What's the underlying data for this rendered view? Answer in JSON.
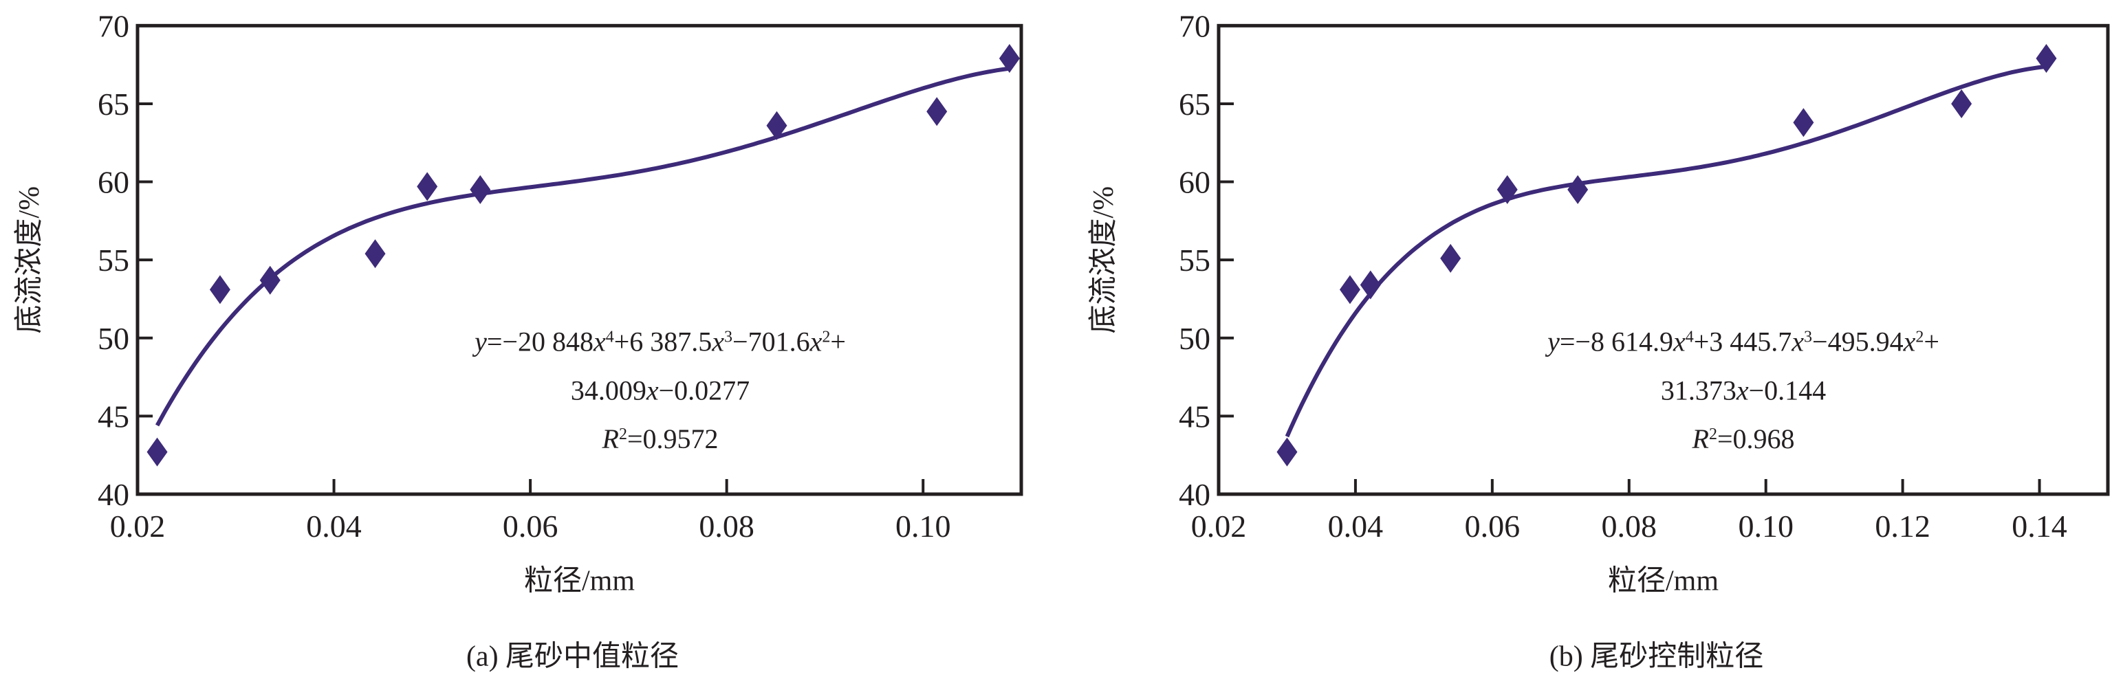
{
  "colors": {
    "series": "#3d2a78",
    "axis": "#231f20"
  },
  "chart_data": [
    {
      "type": "scatter",
      "id": "a",
      "caption": "(a) 尾砂中值粒径",
      "xlabel": "粒径/mm",
      "ylabel": "底流浓度/%",
      "xlim": [
        0.02,
        0.11
      ],
      "ylim": [
        40,
        70
      ],
      "xticks": [
        0.02,
        0.04,
        0.06,
        0.08,
        0.1
      ],
      "xtick_labels": [
        "0.02",
        "0.04",
        "0.06",
        "0.08",
        "0.10"
      ],
      "yticks": [
        40,
        45,
        50,
        55,
        60,
        65,
        70
      ],
      "ytick_labels": [
        "40",
        "45",
        "50",
        "55",
        "60",
        "65",
        "70"
      ],
      "grid": false,
      "points": {
        "x": [
          0.022,
          0.0284,
          0.0335,
          0.0442,
          0.0495,
          0.0549,
          0.0851,
          0.1014,
          0.1088
        ],
        "y": [
          42.7,
          53.1,
          53.7,
          55.4,
          59.7,
          59.5,
          63.6,
          64.5,
          67.9
        ]
      },
      "trendline": {
        "type": "polynomial",
        "order": 4,
        "coefficients": [
          -20848,
          6387.5,
          -701.6,
          34.009,
          -0.0277
        ],
        "r2": 0.9572
      },
      "equation_lines": [
        [
          {
            "t": "y",
            "i": true
          },
          {
            "t": "=−20 848"
          },
          {
            "t": "x",
            "i": true
          },
          {
            "t": "4",
            "s": true
          },
          {
            "t": "+6 387.5"
          },
          {
            "t": "x",
            "i": true
          },
          {
            "t": "3",
            "s": true
          },
          {
            "t": "−701.6"
          },
          {
            "t": "x",
            "i": true
          },
          {
            "t": "2",
            "s": true
          },
          {
            "t": "+"
          }
        ],
        [
          {
            "t": "34.009"
          },
          {
            "t": "x",
            "i": true
          },
          {
            "t": "−0.0277"
          }
        ],
        [
          {
            "t": "R",
            "i": true
          },
          {
            "t": "2",
            "s": true
          },
          {
            "t": "=0.9572"
          }
        ]
      ]
    },
    {
      "type": "scatter",
      "id": "b",
      "caption": "(b) 尾砂控制粒径",
      "xlabel": "粒径/mm",
      "ylabel": "底流浓度/%",
      "xlim": [
        0.02,
        0.15
      ],
      "ylim": [
        40,
        70
      ],
      "xticks": [
        0.02,
        0.04,
        0.06,
        0.08,
        0.1,
        0.12,
        0.14
      ],
      "xtick_labels": [
        "0.02",
        "0.04",
        "0.06",
        "0.08",
        "0.10",
        "0.12",
        "0.14"
      ],
      "yticks": [
        40,
        45,
        50,
        55,
        60,
        65,
        70
      ],
      "ytick_labels": [
        "40",
        "45",
        "50",
        "55",
        "60",
        "65",
        "70"
      ],
      "grid": false,
      "points": {
        "x": [
          0.03,
          0.0392,
          0.0422,
          0.0539,
          0.0622,
          0.0725,
          0.1055,
          0.1286,
          0.141
        ],
        "y": [
          42.7,
          53.1,
          53.4,
          55.1,
          59.5,
          59.5,
          63.8,
          65.0,
          67.9
        ]
      },
      "trendline": {
        "type": "polynomial",
        "order": 4,
        "coefficients": [
          -8614.9,
          3445.7,
          -495.94,
          31.373,
          -0.144
        ],
        "r2": 0.968
      },
      "equation_lines": [
        [
          {
            "t": "y",
            "i": true
          },
          {
            "t": "=−8 614.9"
          },
          {
            "t": "x",
            "i": true
          },
          {
            "t": "4",
            "s": true
          },
          {
            "t": "+3 445.7"
          },
          {
            "t": "x",
            "i": true
          },
          {
            "t": "3",
            "s": true
          },
          {
            "t": "−495.94"
          },
          {
            "t": "x",
            "i": true
          },
          {
            "t": "2",
            "s": true
          },
          {
            "t": "+"
          }
        ],
        [
          {
            "t": "31.373"
          },
          {
            "t": "x",
            "i": true
          },
          {
            "t": "−0.144"
          }
        ],
        [
          {
            "t": "R",
            "i": true
          },
          {
            "t": "2",
            "s": true
          },
          {
            "t": "=0.968"
          }
        ]
      ]
    }
  ]
}
